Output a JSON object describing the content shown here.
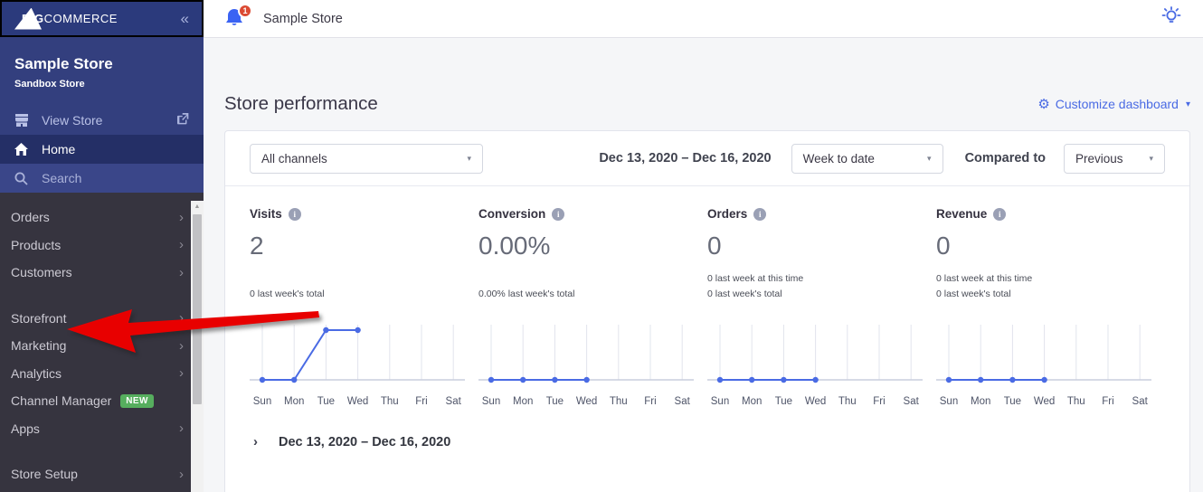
{
  "icons": {
    "collapse": "«",
    "nav_chevron": "›",
    "caret_down": "▾",
    "expand_chevron": "›",
    "info": "i",
    "gear": "⚙",
    "scroll_up": "▲"
  },
  "colors": {
    "accent_blue": "#4a6be4",
    "sidebar_blue": "#333f7e",
    "sidebar_dark": "#36343f",
    "badge_green": "#56ae5e",
    "notification_red": "#db4a33",
    "arrow_red": "#e80000",
    "chart_line": "#4a6be4"
  },
  "sidebar": {
    "logo_triangle_text": "BIG",
    "logo_rest_text": "COMMERCE",
    "store_name": "Sample Store",
    "store_type": "Sandbox Store",
    "view_store_label": "View Store",
    "home_label": "Home",
    "search_label": "Search",
    "nav_items": [
      {
        "label": "Orders",
        "chevron": "›"
      },
      {
        "label": "Products",
        "chevron": "›"
      },
      {
        "label": "Customers",
        "chevron": "›"
      },
      {
        "label": "Storefront",
        "chevron": "›"
      },
      {
        "label": "Marketing",
        "chevron": "›"
      },
      {
        "label": "Analytics",
        "chevron": "›"
      },
      {
        "label": "Channel Manager",
        "badge": "NEW"
      },
      {
        "label": "Apps",
        "chevron": "›"
      },
      {
        "label": "Store Setup",
        "chevron": "›"
      }
    ]
  },
  "topbar": {
    "notification_count": "1",
    "store_name": "Sample Store"
  },
  "main": {
    "title": "Store performance",
    "customize_label": "Customize dashboard",
    "filters": {
      "channel": "All channels",
      "date_range": "Dec 13, 2020 – Dec 16, 2020",
      "period": "Week to date",
      "compared_label": "Compared to",
      "compare_value": "Previous"
    },
    "metrics": [
      {
        "label": "Visits",
        "value": "2",
        "sub_top": "",
        "sub_bottom": "0 last week's total"
      },
      {
        "label": "Conversion",
        "value": "0.00%",
        "sub_top": "",
        "sub_bottom": "0.00% last week's total"
      },
      {
        "label": "Orders",
        "value": "0",
        "sub_top": "0 last week at this time",
        "sub_bottom": "0 last week's total"
      },
      {
        "label": "Revenue",
        "value": "0",
        "sub_top": "0 last week at this time",
        "sub_bottom": "0 last week's total"
      }
    ],
    "bottom_date": "Dec 13, 2020 – Dec 16, 2020"
  },
  "chart_data": [
    {
      "type": "line",
      "name": "Visits",
      "x": [
        "Sun",
        "Mon",
        "Tue",
        "Wed",
        "Thu",
        "Fri",
        "Sat"
      ],
      "values": [
        0,
        0,
        1,
        1,
        null,
        null,
        null
      ],
      "ymax": 1,
      "grid": true,
      "legend": "none"
    },
    {
      "type": "line",
      "name": "Conversion",
      "x": [
        "Sun",
        "Mon",
        "Tue",
        "Wed",
        "Thu",
        "Fri",
        "Sat"
      ],
      "values": [
        0,
        0,
        0,
        0,
        null,
        null,
        null
      ],
      "ymax": 1,
      "grid": true,
      "legend": "none"
    },
    {
      "type": "line",
      "name": "Orders",
      "x": [
        "Sun",
        "Mon",
        "Tue",
        "Wed",
        "Thu",
        "Fri",
        "Sat"
      ],
      "values": [
        0,
        0,
        0,
        0,
        null,
        null,
        null
      ],
      "ymax": 1,
      "grid": true,
      "legend": "none"
    },
    {
      "type": "line",
      "name": "Revenue",
      "x": [
        "Sun",
        "Mon",
        "Tue",
        "Wed",
        "Thu",
        "Fri",
        "Sat"
      ],
      "values": [
        0,
        0,
        0,
        0,
        null,
        null,
        null
      ],
      "ymax": 1,
      "grid": true,
      "legend": "none"
    }
  ]
}
